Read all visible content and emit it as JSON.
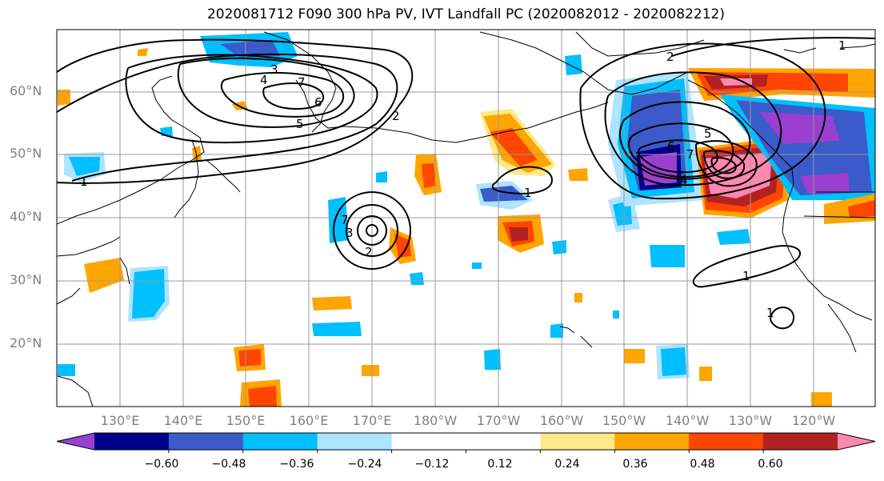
{
  "title": "2020081712 F090 300 hPa PV, IVT Landfall PC (2020082012 - 2020082212)",
  "lat_labels": [
    "60°N",
    "50°N",
    "40°N",
    "30°N",
    "20°N"
  ],
  "lon_labels": [
    "130°E",
    "140°E",
    "150°E",
    "160°E",
    "170°E",
    "180°W",
    "170°W",
    "160°W",
    "150°W",
    "140°W",
    "130°W",
    "120°W"
  ],
  "colorbar": {
    "colors": [
      "#9b3fd0",
      "#00008b",
      "#3a5bc9",
      "#00bfff",
      "#aee4ff",
      "#ffffff",
      "#ffffff",
      "#ffe88a",
      "#ffa500",
      "#ff4500",
      "#b22222",
      "#ff88b0"
    ],
    "ticks": [
      "−0.60",
      "−0.48",
      "−0.36",
      "−0.24",
      "−0.12",
      "0.12",
      "0.24",
      "0.36",
      "0.48",
      "0.60"
    ]
  },
  "contour_labels": [
    "1",
    "2",
    "3",
    "4",
    "5",
    "6",
    "7"
  ]
}
